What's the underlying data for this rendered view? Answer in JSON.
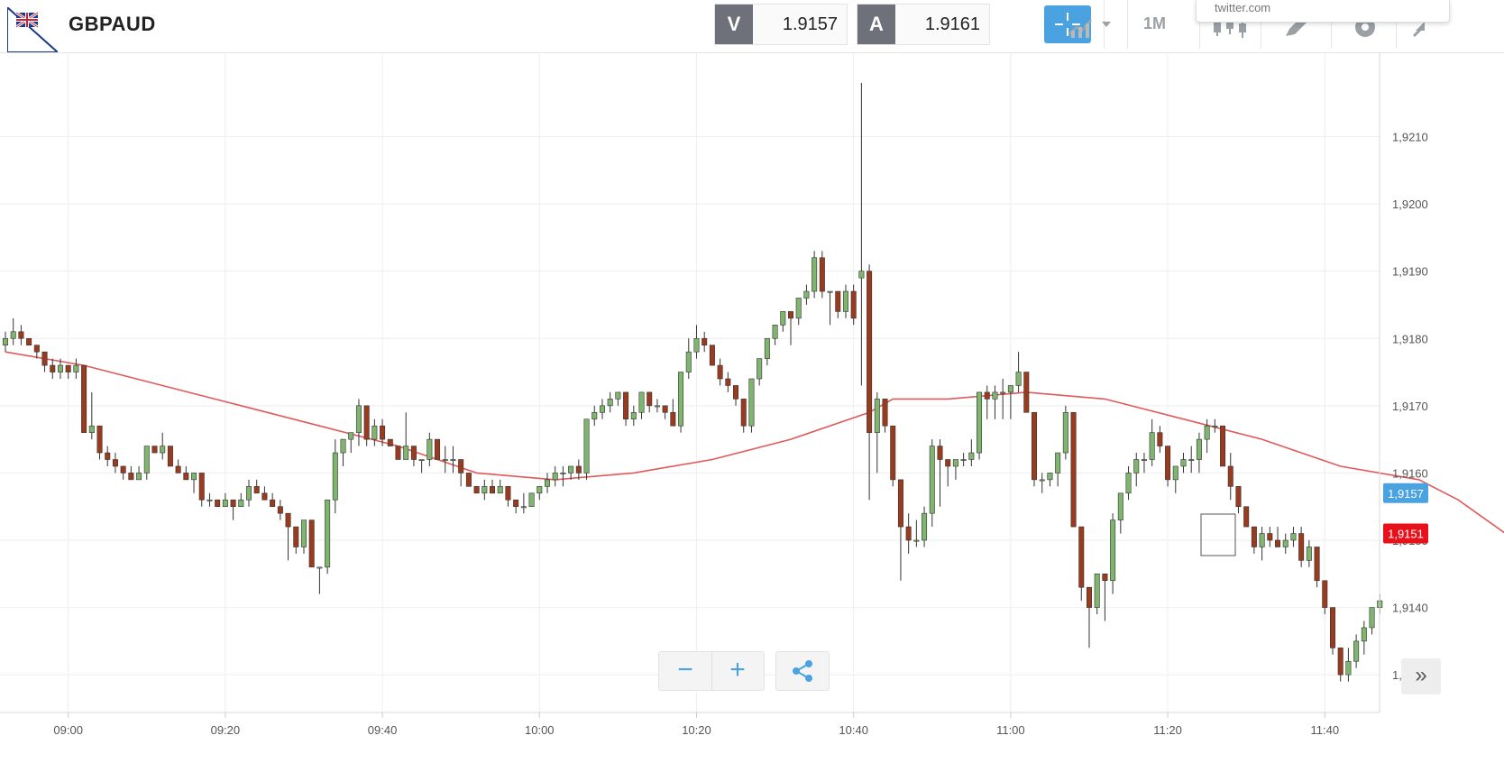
{
  "header": {
    "symbol": "GBPAUD",
    "sell_label": "V",
    "sell_price": "1.9157",
    "buy_label": "A",
    "buy_price": "1.9161",
    "timeframe": "1M",
    "tooltip_text": "twitter.com"
  },
  "colors": {
    "bull": "#7fb56f",
    "bear": "#9a3a1e",
    "ma_line": "#e05a5a",
    "bid_tag": "#4aa3e0",
    "ask_tag": "#e8101a",
    "accent": "#4aa3e0"
  },
  "chart_data": {
    "type": "candlestick",
    "title": "",
    "ylim": [
      1.9126,
      1.9222
    ],
    "y_ticks": [
      "1,9130",
      "1,9140",
      "1,9150",
      "1,9160",
      "1,9170",
      "1,9180",
      "1,9190",
      "1,9200",
      "1,9210"
    ],
    "x_ticks": [
      "09:00",
      "09:20",
      "09:40",
      "10:00",
      "10:20",
      "10:40",
      "11:00",
      "11:20",
      "11:40"
    ],
    "price_tags": [
      {
        "label": "1,9157",
        "value": 1.9157,
        "color": "#4aa3e0"
      },
      {
        "label": "1,9151",
        "value": 1.9151,
        "color": "#e8101a"
      }
    ],
    "interval_minutes": 1,
    "candles_ohlc": [
      [
        1.9179,
        1.9181,
        1.9178,
        1.918
      ],
      [
        1.918,
        1.9183,
        1.9179,
        1.9181
      ],
      [
        1.9181,
        1.9182,
        1.9179,
        1.918
      ],
      [
        1.918,
        1.918,
        1.9179,
        1.9179
      ],
      [
        1.9179,
        1.9179,
        1.9177,
        1.9178
      ],
      [
        1.9178,
        1.9178,
        1.9175,
        1.9176
      ],
      [
        1.9176,
        1.9177,
        1.9174,
        1.9175
      ],
      [
        1.9175,
        1.9177,
        1.9174,
        1.9176
      ],
      [
        1.9176,
        1.9176,
        1.9174,
        1.9175
      ],
      [
        1.9175,
        1.9177,
        1.9174,
        1.9176
      ],
      [
        1.9176,
        1.9176,
        1.9166,
        1.9166
      ],
      [
        1.9166,
        1.9172,
        1.9165,
        1.9167
      ],
      [
        1.9167,
        1.9167,
        1.9162,
        1.9163
      ],
      [
        1.9163,
        1.9164,
        1.9161,
        1.9162
      ],
      [
        1.9162,
        1.9163,
        1.916,
        1.9161
      ],
      [
        1.9161,
        1.9161,
        1.9159,
        1.916
      ],
      [
        1.916,
        1.9161,
        1.9159,
        1.9159
      ],
      [
        1.9159,
        1.9161,
        1.9159,
        1.916
      ],
      [
        1.916,
        1.9164,
        1.9159,
        1.9164
      ],
      [
        1.9164,
        1.9164,
        1.9163,
        1.9163
      ],
      [
        1.9163,
        1.9166,
        1.9162,
        1.9164
      ],
      [
        1.9164,
        1.9164,
        1.9161,
        1.9161
      ],
      [
        1.9161,
        1.9162,
        1.916,
        1.916
      ],
      [
        1.916,
        1.9161,
        1.9159,
        1.9159
      ],
      [
        1.9159,
        1.916,
        1.9157,
        1.916
      ],
      [
        1.916,
        1.916,
        1.9155,
        1.9156
      ],
      [
        1.9156,
        1.9157,
        1.9155,
        1.9156
      ],
      [
        1.9156,
        1.9156,
        1.9155,
        1.9155
      ],
      [
        1.9155,
        1.9157,
        1.9155,
        1.9156
      ],
      [
        1.9156,
        1.9156,
        1.9153,
        1.9155
      ],
      [
        1.9155,
        1.9157,
        1.9155,
        1.9156
      ],
      [
        1.9156,
        1.9159,
        1.9155,
        1.9158
      ],
      [
        1.9158,
        1.9159,
        1.9157,
        1.9157
      ],
      [
        1.9157,
        1.9158,
        1.9156,
        1.9156
      ],
      [
        1.9156,
        1.9157,
        1.9155,
        1.9155
      ],
      [
        1.9155,
        1.9156,
        1.9153,
        1.9154
      ],
      [
        1.9154,
        1.9154,
        1.9147,
        1.9152
      ],
      [
        1.9152,
        1.9152,
        1.9148,
        1.9149
      ],
      [
        1.9149,
        1.9153,
        1.9148,
        1.9153
      ],
      [
        1.9153,
        1.9153,
        1.9146,
        1.9146
      ],
      [
        1.9146,
        1.9146,
        1.9142,
        1.9146
      ],
      [
        1.9146,
        1.9156,
        1.9145,
        1.9156
      ],
      [
        1.9156,
        1.9165,
        1.9154,
        1.9163
      ],
      [
        1.9163,
        1.9165,
        1.9161,
        1.9165
      ],
      [
        1.9165,
        1.9166,
        1.9163,
        1.9166
      ],
      [
        1.9166,
        1.9171,
        1.9164,
        1.917
      ],
      [
        1.917,
        1.917,
        1.9164,
        1.9165
      ],
      [
        1.9165,
        1.9168,
        1.9164,
        1.9167
      ],
      [
        1.9167,
        1.9168,
        1.9164,
        1.9165
      ],
      [
        1.9165,
        1.9165,
        1.9164,
        1.9164
      ],
      [
        1.9164,
        1.9164,
        1.9162,
        1.9162
      ],
      [
        1.9162,
        1.9169,
        1.9162,
        1.9164
      ],
      [
        1.9164,
        1.9164,
        1.9161,
        1.9162
      ],
      [
        1.9162,
        1.9162,
        1.916,
        1.9162
      ],
      [
        1.9162,
        1.9166,
        1.9161,
        1.9165
      ],
      [
        1.9165,
        1.9165,
        1.9162,
        1.9162
      ],
      [
        1.9162,
        1.9164,
        1.916,
        1.9162
      ],
      [
        1.9162,
        1.9164,
        1.916,
        1.9162
      ],
      [
        1.9162,
        1.9162,
        1.9158,
        1.916
      ],
      [
        1.916,
        1.916,
        1.9158,
        1.9158
      ],
      [
        1.9158,
        1.9158,
        1.9157,
        1.9157
      ],
      [
        1.9157,
        1.9159,
        1.9156,
        1.9158
      ],
      [
        1.9158,
        1.9159,
        1.9157,
        1.9157
      ],
      [
        1.9157,
        1.9159,
        1.9157,
        1.9158
      ],
      [
        1.9158,
        1.9158,
        1.9155,
        1.9156
      ],
      [
        1.9156,
        1.9156,
        1.9154,
        1.9155
      ],
      [
        1.9155,
        1.9157,
        1.9154,
        1.9155
      ],
      [
        1.9155,
        1.9157,
        1.9155,
        1.9157
      ],
      [
        1.9157,
        1.9158,
        1.9156,
        1.9158
      ],
      [
        1.9158,
        1.916,
        1.9157,
        1.9159
      ],
      [
        1.9159,
        1.9161,
        1.9158,
        1.916
      ],
      [
        1.916,
        1.9161,
        1.9158,
        1.916
      ],
      [
        1.916,
        1.9161,
        1.9159,
        1.9161
      ],
      [
        1.9161,
        1.9162,
        1.9159,
        1.916
      ],
      [
        1.916,
        1.9168,
        1.9159,
        1.9168
      ],
      [
        1.9168,
        1.917,
        1.9167,
        1.9169
      ],
      [
        1.9169,
        1.9171,
        1.9168,
        1.917
      ],
      [
        1.917,
        1.9172,
        1.9169,
        1.9171
      ],
      [
        1.9171,
        1.9172,
        1.917,
        1.9172
      ],
      [
        1.9172,
        1.9172,
        1.9167,
        1.9168
      ],
      [
        1.9168,
        1.917,
        1.9167,
        1.9169
      ],
      [
        1.9169,
        1.9172,
        1.9168,
        1.9172
      ],
      [
        1.9172,
        1.9172,
        1.9169,
        1.917
      ],
      [
        1.917,
        1.9171,
        1.9169,
        1.917
      ],
      [
        1.917,
        1.917,
        1.9168,
        1.9169
      ],
      [
        1.9169,
        1.9171,
        1.9167,
        1.9167
      ],
      [
        1.9167,
        1.9175,
        1.9166,
        1.9175
      ],
      [
        1.9175,
        1.918,
        1.9174,
        1.9178
      ],
      [
        1.9178,
        1.9182,
        1.9177,
        1.918
      ],
      [
        1.918,
        1.9181,
        1.9178,
        1.9179
      ],
      [
        1.9179,
        1.9179,
        1.9176,
        1.9176
      ],
      [
        1.9176,
        1.9177,
        1.9173,
        1.9174
      ],
      [
        1.9174,
        1.9175,
        1.9172,
        1.9173
      ],
      [
        1.9173,
        1.9173,
        1.917,
        1.9171
      ],
      [
        1.9171,
        1.9171,
        1.9166,
        1.9167
      ],
      [
        1.9167,
        1.9174,
        1.9166,
        1.9174
      ],
      [
        1.9174,
        1.9177,
        1.9173,
        1.9177
      ],
      [
        1.9177,
        1.918,
        1.9176,
        1.918
      ],
      [
        1.918,
        1.9182,
        1.9179,
        1.9182
      ],
      [
        1.9182,
        1.9184,
        1.9181,
        1.9184
      ],
      [
        1.9184,
        1.9183,
        1.9179,
        1.9183
      ],
      [
        1.9183,
        1.9186,
        1.9182,
        1.9186
      ],
      [
        1.9186,
        1.9188,
        1.9185,
        1.9187
      ],
      [
        1.9187,
        1.9193,
        1.9186,
        1.9192
      ],
      [
        1.9192,
        1.9193,
        1.9186,
        1.9187
      ],
      [
        1.9187,
        1.9187,
        1.9182,
        1.9187
      ],
      [
        1.9187,
        1.9187,
        1.9183,
        1.9184
      ],
      [
        1.9184,
        1.9188,
        1.9183,
        1.9187
      ],
      [
        1.9187,
        1.9188,
        1.9182,
        1.9183
      ],
      [
        1.9189,
        1.9218,
        1.9173,
        1.919
      ],
      [
        1.919,
        1.9191,
        1.9156,
        1.9166
      ],
      [
        1.9166,
        1.9172,
        1.916,
        1.9171
      ],
      [
        1.9171,
        1.9171,
        1.9166,
        1.9167
      ],
      [
        1.9167,
        1.9167,
        1.9158,
        1.9159
      ],
      [
        1.9159,
        1.9159,
        1.9144,
        1.9152
      ],
      [
        1.9152,
        1.9154,
        1.9148,
        1.915
      ],
      [
        1.915,
        1.9153,
        1.9149,
        1.915
      ],
      [
        1.915,
        1.9155,
        1.9149,
        1.9154
      ],
      [
        1.9154,
        1.9165,
        1.9152,
        1.9164
      ],
      [
        1.9164,
        1.9165,
        1.9155,
        1.9162
      ],
      [
        1.9162,
        1.9162,
        1.9158,
        1.9161
      ],
      [
        1.9161,
        1.9162,
        1.9159,
        1.9162
      ],
      [
        1.9162,
        1.9163,
        1.9161,
        1.9162
      ],
      [
        1.9162,
        1.9165,
        1.9161,
        1.9163
      ],
      [
        1.9163,
        1.9172,
        1.9162,
        1.9172
      ],
      [
        1.9172,
        1.9173,
        1.9168,
        1.9171
      ],
      [
        1.9171,
        1.9173,
        1.9168,
        1.9172
      ],
      [
        1.9172,
        1.9174,
        1.9168,
        1.9172
      ],
      [
        1.9172,
        1.9173,
        1.9168,
        1.9173
      ],
      [
        1.9173,
        1.9178,
        1.9172,
        1.9175
      ],
      [
        1.9175,
        1.9175,
        1.9169,
        1.9169
      ],
      [
        1.9169,
        1.9169,
        1.9158,
        1.9159
      ],
      [
        1.9159,
        1.916,
        1.9157,
        1.9159
      ],
      [
        1.9159,
        1.916,
        1.9158,
        1.916
      ],
      [
        1.916,
        1.9163,
        1.9158,
        1.9163
      ],
      [
        1.9163,
        1.917,
        1.9162,
        1.9169
      ],
      [
        1.9169,
        1.9169,
        1.9152,
        1.9152
      ],
      [
        1.9152,
        1.9152,
        1.9141,
        1.9143
      ],
      [
        1.9143,
        1.9143,
        1.9134,
        1.914
      ],
      [
        1.914,
        1.9145,
        1.9139,
        1.9145
      ],
      [
        1.9145,
        1.9145,
        1.9138,
        1.9144
      ],
      [
        1.9144,
        1.9154,
        1.9142,
        1.9153
      ],
      [
        1.9153,
        1.9157,
        1.9151,
        1.9157
      ],
      [
        1.9157,
        1.9161,
        1.9156,
        1.916
      ],
      [
        1.916,
        1.9163,
        1.9158,
        1.9162
      ],
      [
        1.9162,
        1.9163,
        1.916,
        1.9162
      ],
      [
        1.9162,
        1.9168,
        1.9161,
        1.9166
      ],
      [
        1.9166,
        1.9167,
        1.9163,
        1.9164
      ],
      [
        1.9164,
        1.9164,
        1.9158,
        1.9159
      ],
      [
        1.9159,
        1.9161,
        1.9157,
        1.9161
      ],
      [
        1.9161,
        1.9163,
        1.916,
        1.9162
      ],
      [
        1.9162,
        1.9164,
        1.916,
        1.9162
      ],
      [
        1.9162,
        1.9166,
        1.916,
        1.9165
      ],
      [
        1.9165,
        1.9168,
        1.9163,
        1.9167
      ],
      [
        1.9167,
        1.9168,
        1.9166,
        1.9167
      ],
      [
        1.9167,
        1.9167,
        1.9161,
        1.9161
      ],
      [
        1.9161,
        1.9163,
        1.9156,
        1.9158
      ],
      [
        1.9158,
        1.9158,
        1.9154,
        1.9155
      ],
      [
        1.9155,
        1.9155,
        1.9152,
        1.9152
      ],
      [
        1.9152,
        1.9152,
        1.9148,
        1.9149
      ],
      [
        1.9149,
        1.9152,
        1.9147,
        1.9151
      ],
      [
        1.9151,
        1.9152,
        1.9149,
        1.915
      ],
      [
        1.915,
        1.9152,
        1.9149,
        1.9149
      ],
      [
        1.9149,
        1.9151,
        1.9148,
        1.915
      ],
      [
        1.915,
        1.9152,
        1.9149,
        1.9151
      ],
      [
        1.9151,
        1.9152,
        1.9146,
        1.9147
      ],
      [
        1.9147,
        1.915,
        1.9146,
        1.9149
      ],
      [
        1.9149,
        1.9149,
        1.9143,
        1.9144
      ],
      [
        1.9144,
        1.9144,
        1.9139,
        1.914
      ],
      [
        1.914,
        1.914,
        1.9133,
        1.9134
      ],
      [
        1.9134,
        1.9134,
        1.9129,
        1.913
      ],
      [
        1.913,
        1.9134,
        1.9129,
        1.9132
      ],
      [
        1.9132,
        1.9136,
        1.9131,
        1.9135
      ],
      [
        1.9135,
        1.9138,
        1.9133,
        1.9137
      ],
      [
        1.9137,
        1.914,
        1.9136,
        1.914
      ],
      [
        1.914,
        1.9142,
        1.9139,
        1.9141
      ]
    ],
    "moving_average": [
      [
        0,
        1.9178
      ],
      [
        10,
        1.9176
      ],
      [
        20,
        1.9173
      ],
      [
        30,
        1.917
      ],
      [
        40,
        1.9167
      ],
      [
        50,
        1.9164
      ],
      [
        60,
        1.916
      ],
      [
        70,
        1.9159
      ],
      [
        80,
        1.916
      ],
      [
        90,
        1.9162
      ],
      [
        100,
        1.9165
      ],
      [
        110,
        1.9169
      ],
      [
        113,
        1.9171
      ],
      [
        120,
        1.9171
      ],
      [
        130,
        1.9172
      ],
      [
        140,
        1.9171
      ],
      [
        150,
        1.9168
      ],
      [
        160,
        1.9165
      ],
      [
        170,
        1.9161
      ],
      [
        180,
        1.9159
      ],
      [
        185,
        1.9156
      ],
      [
        191,
        1.9151
      ]
    ]
  },
  "controls": {
    "zoom_out": "−",
    "zoom_in": "+",
    "scroll_label": "»"
  }
}
